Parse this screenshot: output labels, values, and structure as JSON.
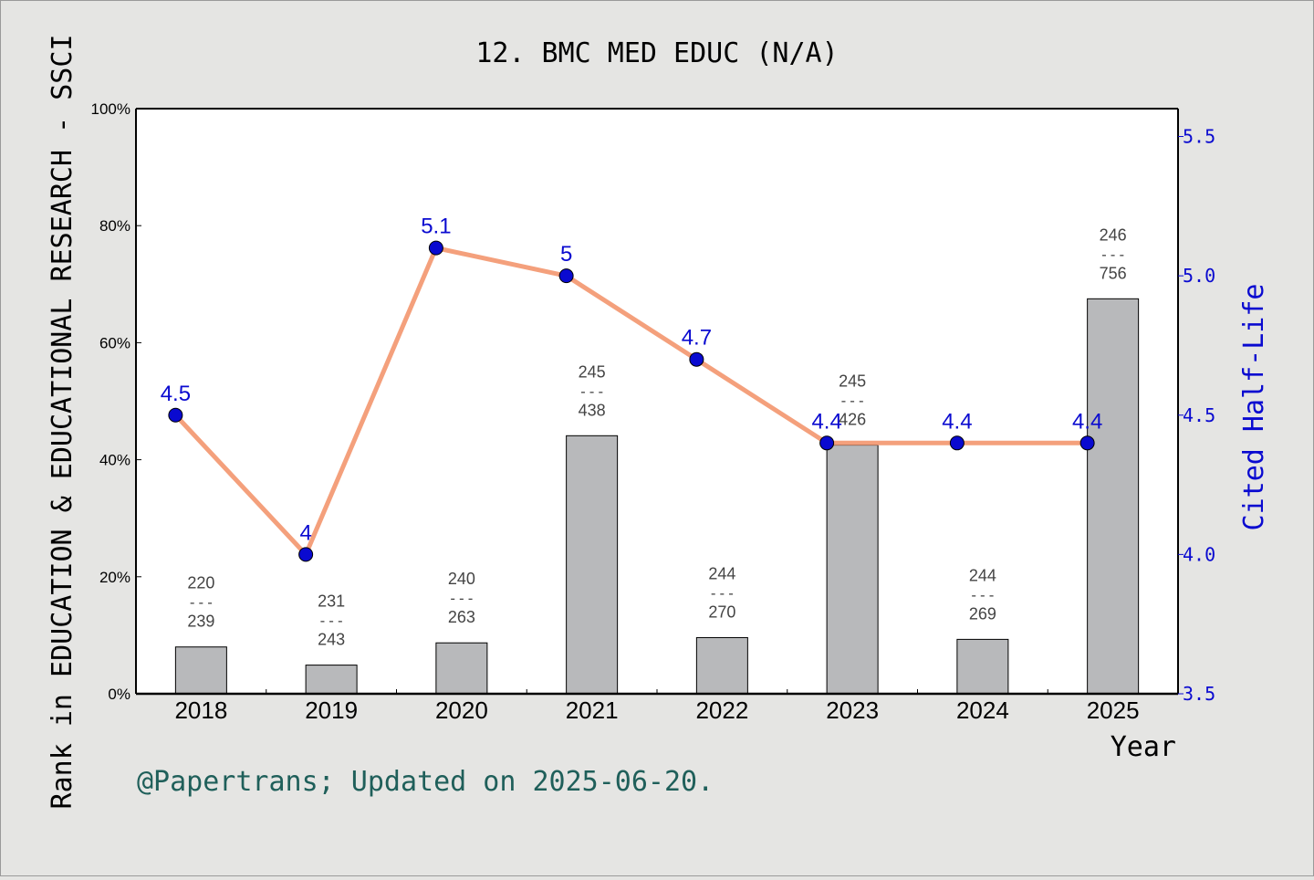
{
  "chart_data": {
    "type": "bar+line",
    "title": "12. BMC MED EDUC (N/A)",
    "xlabel": "Year",
    "ylabel_left": "Rank in EDUCATION & EDUCATIONAL RESEARCH - SSCI",
    "ylabel_right": "Cited Half-Life",
    "categories": [
      "2018",
      "2019",
      "2020",
      "2021",
      "2022",
      "2023",
      "2024",
      "2025"
    ],
    "left_axis": {
      "ylim": [
        0,
        100
      ],
      "ticks": [
        "0%",
        "20%",
        "40%",
        "60%",
        "80%",
        "100%"
      ],
      "tick_values": [
        0,
        20,
        40,
        60,
        80,
        100
      ]
    },
    "right_axis": {
      "ylim": [
        3.5,
        5.6
      ],
      "ticks": [
        "3.5",
        "4.0",
        "4.5",
        "5.0",
        "5.5"
      ],
      "tick_values": [
        3.5,
        4.0,
        4.5,
        5.0,
        5.5
      ]
    },
    "bars": {
      "name": "Rank",
      "ranks": [
        220,
        231,
        240,
        245,
        244,
        245,
        244,
        246
      ],
      "totals": [
        239,
        243,
        263,
        438,
        270,
        426,
        269,
        756
      ],
      "percent_values": [
        8.0,
        4.9,
        8.7,
        44.1,
        9.6,
        42.5,
        9.3,
        67.5
      ],
      "color": "#b8b9bb"
    },
    "line": {
      "name": "Cited Half-Life",
      "values": [
        4.5,
        4.0,
        5.1,
        5.0,
        4.7,
        4.4,
        4.4,
        4.4
      ],
      "labels": [
        "4.5",
        "4",
        "5.1",
        "5",
        "4.7",
        "4.4",
        "4.4",
        "4.4"
      ],
      "line_color": "#f4a07c",
      "marker_color": "#0a0ad0",
      "label_color": "#0a0ad0"
    },
    "separator": "---",
    "grid": false,
    "legend": "none"
  },
  "footer": {
    "credit": "@Papertrans; Updated on 2025-06-20."
  },
  "colors": {
    "background": "#e5e5e3",
    "plot_background": "#ffffff",
    "axis_right": "#0a0ad0",
    "credit": "#1f5f5a"
  }
}
